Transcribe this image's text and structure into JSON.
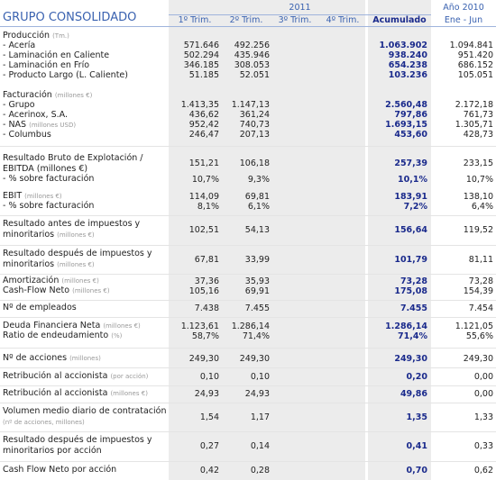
{
  "header": {
    "title": "GRUPO CONSOLIDADO",
    "year": "2011",
    "columns": [
      "1º Trim.",
      "2º Trim.",
      "3º Trim.",
      "4º Trim.",
      "Acumulado"
    ],
    "prev_year": "Año 2010",
    "prev_period": "Ene - Jun"
  },
  "rows": [
    {
      "label": "Producción",
      "unit": "(Tm.)"
    },
    {
      "label": "- Acería",
      "values": [
        "571.646",
        "492.256",
        null,
        null,
        "1.063.902",
        "1.094.841"
      ]
    },
    {
      "label": "- Laminación en Caliente",
      "values": [
        "502.294",
        "435.946",
        null,
        null,
        "938.240",
        "951.420"
      ]
    },
    {
      "label": "- Laminación en Frío",
      "values": [
        "346.185",
        "308.053",
        null,
        null,
        "654.238",
        "686.152"
      ]
    },
    {
      "label": "- Producto Largo (L. Caliente)",
      "values": [
        "51.185",
        "52.051",
        null,
        null,
        "103.236",
        "105.051"
      ]
    },
    {
      "label": "Facturación",
      "unit": "(millones €)"
    },
    {
      "label": "- Grupo",
      "values": [
        "1.413,35",
        "1.147,13",
        null,
        null,
        "2.560,48",
        "2.172,18"
      ]
    },
    {
      "label": "- Acerinox, S.A.",
      "values": [
        "436,62",
        "361,24",
        null,
        null,
        "797,86",
        "761,73"
      ]
    },
    {
      "label": "- NAS",
      "unit": "(millones USD)",
      "values": [
        "952,42",
        "740,73",
        null,
        null,
        "1.693,15",
        "1.305,71"
      ]
    },
    {
      "label": "- Columbus",
      "values": [
        "246,47",
        "207,13",
        null,
        null,
        "453,60",
        "428,73"
      ]
    },
    {
      "label": "Resultado Bruto de Explotación / EBITDA (millones €)",
      "values": [
        "151,21",
        "106,18",
        null,
        null,
        "257,39",
        "233,15"
      ]
    },
    {
      "label": "- % sobre facturación",
      "values": [
        "10,7%",
        "9,3%",
        null,
        null,
        "10,1%",
        "10,7%"
      ]
    },
    {
      "label": "EBIT",
      "unit": "(millones €)",
      "values": [
        "114,09",
        "69,81",
        null,
        null,
        "183,91",
        "138,10"
      ]
    },
    {
      "label": "- % sobre facturación",
      "values": [
        "8,1%",
        "6,1%",
        null,
        null,
        "7,2%",
        "6,4%"
      ]
    },
    {
      "label": "Resultado antes de impuestos y minoritarios",
      "unit": "(millones €)",
      "values": [
        "102,51",
        "54,13",
        null,
        null,
        "156,64",
        "119,52"
      ]
    },
    {
      "label": "Resultado después de impuestos y minoritarios",
      "unit": "(millones €)",
      "values": [
        "67,81",
        "33,99",
        null,
        null,
        "101,79",
        "81,11"
      ]
    },
    {
      "label": "Amortización",
      "unit": "(millones €)",
      "values": [
        "37,36",
        "35,93",
        null,
        null,
        "73,28",
        "73,28"
      ]
    },
    {
      "label": "Cash-Flow Neto",
      "unit": "(millones €)",
      "values": [
        "105,16",
        "69,91",
        null,
        null,
        "175,08",
        "154,39"
      ]
    },
    {
      "label": "Nº de empleados",
      "values": [
        "7.438",
        "7.455",
        null,
        null,
        "7.455",
        "7.454"
      ]
    },
    {
      "label": "Deuda Financiera Neta",
      "unit": "(millones €)",
      "values": [
        "1.123,61",
        "1.286,14",
        null,
        null,
        "1.286,14",
        "1.121,05"
      ]
    },
    {
      "label": "Ratio de endeudamiento",
      "unit": "(%)",
      "values": [
        "58,7%",
        "71,4%",
        null,
        null,
        "71,4%",
        "55,6%"
      ]
    },
    {
      "label": "Nº de acciones",
      "unit": "(millones)",
      "values": [
        "249,30",
        "249,30",
        null,
        null,
        "249,30",
        "249,30"
      ]
    },
    {
      "label": "Retribución al accionista",
      "unit": "(por acción)",
      "values": [
        "0,10",
        "0,10",
        null,
        null,
        "0,20",
        "0,00"
      ]
    },
    {
      "label": "Retribución al accionista",
      "unit": "(millones €)",
      "values": [
        "24,93",
        "24,93",
        null,
        null,
        "49,86",
        "0,00"
      ]
    },
    {
      "label": "Volumen medio diario de contratación",
      "unit": "(nº de acciones, millones)",
      "values": [
        "1,54",
        "1,17",
        null,
        null,
        "1,35",
        "1,33"
      ]
    },
    {
      "label": "Resultado después de impuestos y minoritarios por acción",
      "values": [
        "0,27",
        "0,14",
        null,
        null,
        "0,41",
        "0,33"
      ]
    },
    {
      "label": "Cash Flow Neto por acción",
      "values": [
        "0,42",
        "0,28",
        null,
        null,
        "0,70",
        "0,62"
      ]
    }
  ]
}
